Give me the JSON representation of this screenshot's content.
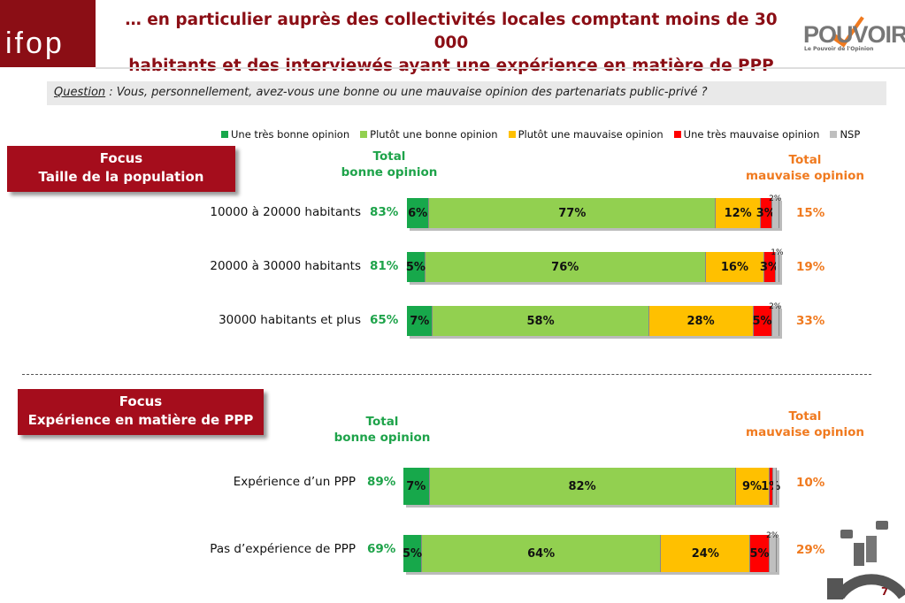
{
  "header": {
    "logo_text": "ifop",
    "title_line1": "… en particulier auprès des collectivités locales comptant moins de 30 000",
    "title_line2": "habitants et des interviewés ayant une expérience en matière de PPP",
    "partner_logo_text": "POUVOIR",
    "partner_logo_tagline": "Le Pouvoir de l'Opinion"
  },
  "question": {
    "label": "Question",
    "text": " : Vous, personnellement, avez-vous une bonne ou une mauvaise opinion des partenariats public-privé ?"
  },
  "page_number": "7",
  "chart_data": {
    "type": "stacked-bar-horizontal",
    "legend": [
      {
        "name": "Une très bonne opinion",
        "color": "#17a84b"
      },
      {
        "name": "Plutôt une bonne opinion",
        "color": "#92d050"
      },
      {
        "name": "Plutôt une mauvaise opinion",
        "color": "#ffc000"
      },
      {
        "name": "Une très mauvaise opinion",
        "color": "#ff0000"
      },
      {
        "name": "NSP",
        "color": "#bfbfbf"
      }
    ],
    "legend_position": "top",
    "groups": [
      {
        "focus_line1": "Focus",
        "focus_line2": "Taille de la population",
        "total_good_label_1": "Total",
        "total_good_label_2": "bonne opinion",
        "total_bad_label_1": "Total",
        "total_bad_label_2": "mauvaise opinion",
        "rows": [
          {
            "category": "10000 à 20000 habitants",
            "total_good": "83%",
            "total_bad": "15%",
            "values": [
              6,
              77,
              12,
              3,
              2
            ],
            "labels": [
              "6%",
              "77%",
              "12%",
              "3%",
              "2%"
            ]
          },
          {
            "category": "20000 à 30000 habitants",
            "total_good": "81%",
            "total_bad": "19%",
            "values": [
              5,
              76,
              16,
              3,
              1
            ],
            "labels": [
              "5%",
              "76%",
              "16%",
              "3%",
              "1%"
            ]
          },
          {
            "category": "30000 habitants et plus",
            "total_good": "65%",
            "total_bad": "33%",
            "values": [
              7,
              58,
              28,
              5,
              2
            ],
            "labels": [
              "7%",
              "58%",
              "28%",
              "5%",
              "2%"
            ]
          }
        ]
      },
      {
        "focus_line1": "Focus",
        "focus_line2": "Expérience en matière de PPP",
        "total_good_label_1": "Total",
        "total_good_label_2": "bonne opinion",
        "total_bad_label_1": "Total",
        "total_bad_label_2": "mauvaise opinion",
        "rows": [
          {
            "category": "Expérience d’un PPP",
            "total_good": "89%",
            "total_bad": "10%",
            "values": [
              7,
              82,
              9,
              1,
              1
            ],
            "labels": [
              "7%",
              "82%",
              "9%",
              "1%",
              ""
            ]
          },
          {
            "category": "Pas d’expérience de PPP",
            "total_good": "69%",
            "total_bad": "29%",
            "values": [
              5,
              64,
              24,
              5,
              2
            ],
            "labels": [
              "5%",
              "64%",
              "24%",
              "5%",
              "2%"
            ]
          }
        ]
      }
    ]
  }
}
